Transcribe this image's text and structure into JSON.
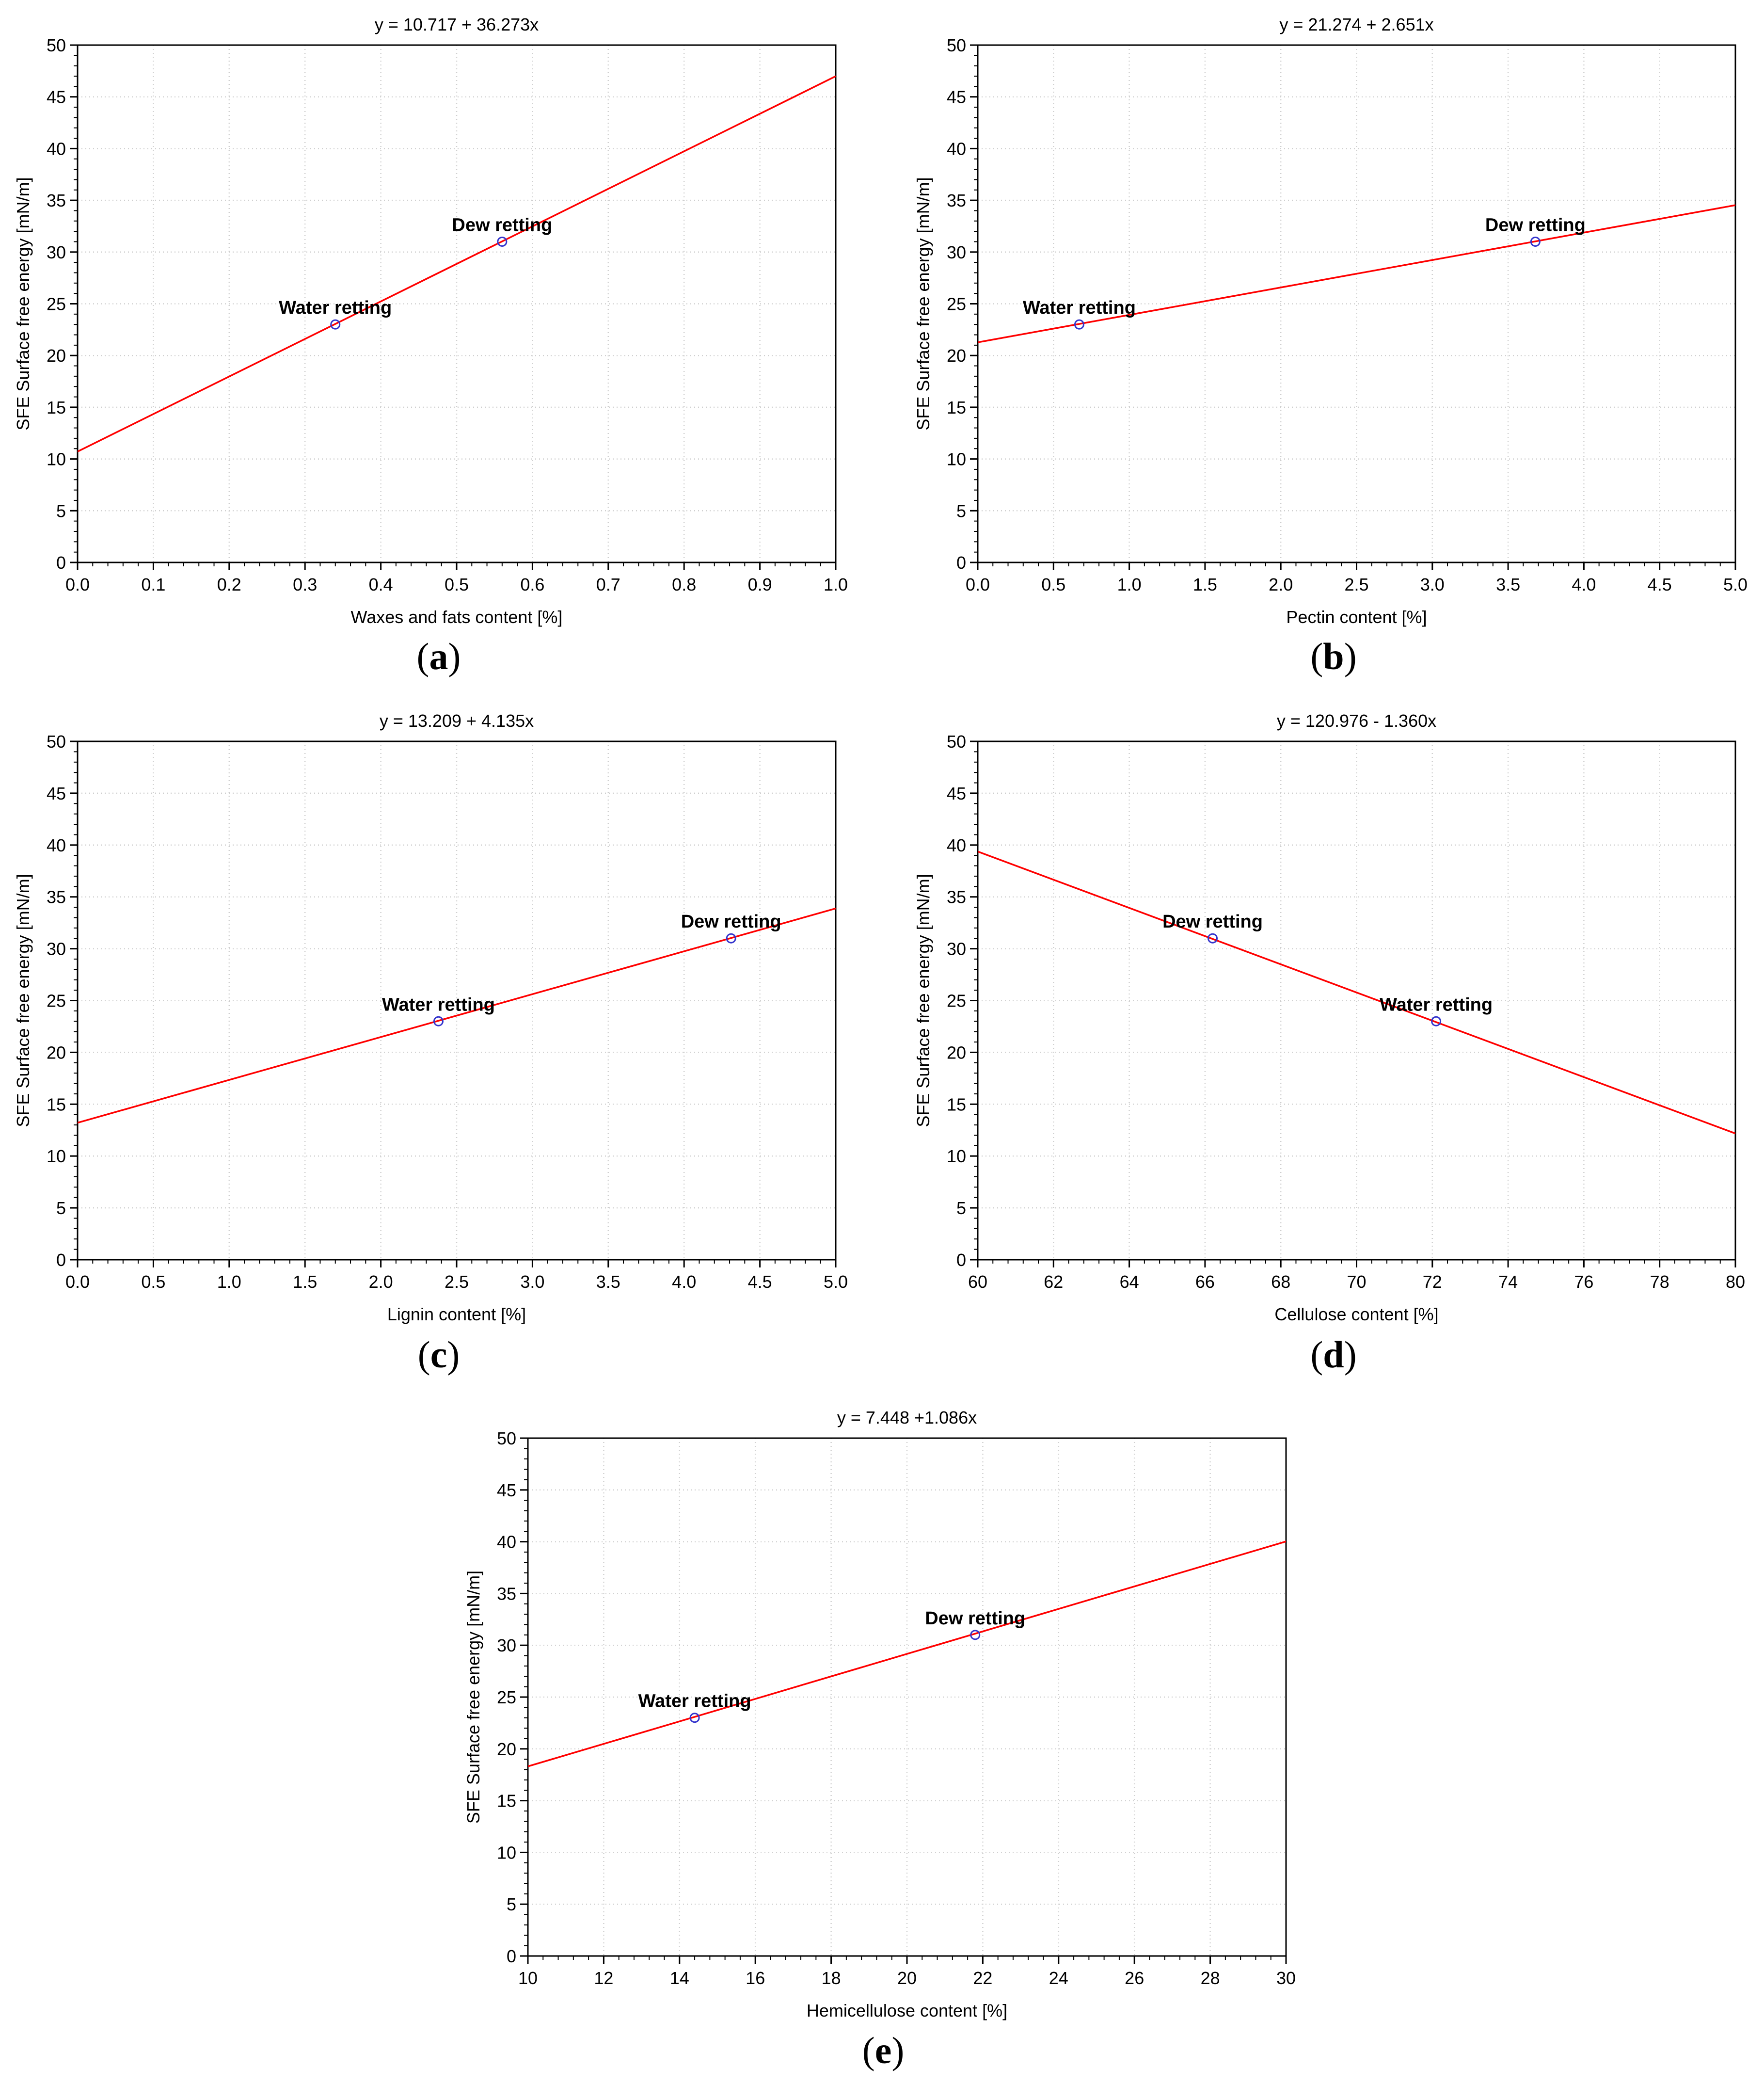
{
  "chart_data": [
    {
      "type": "scatter",
      "panel_label": "a",
      "title": "y = 10.717 + 36.273x",
      "xlabel": "Waxes and fats content [%]",
      "ylabel": "SFE Surface free energy [mN/m]",
      "xlim": [
        0,
        1.0
      ],
      "ylim": [
        0,
        50
      ],
      "x_ticks": [
        "0.0",
        "0.1",
        "0.2",
        "0.3",
        "0.4",
        "0.5",
        "0.6",
        "0.7",
        "0.8",
        "0.9",
        "1.0"
      ],
      "y_ticks": [
        "0",
        "5",
        "10",
        "15",
        "20",
        "25",
        "30",
        "35",
        "40",
        "45",
        "50"
      ],
      "grid": true,
      "line_color": "#ff0000",
      "point_color": "#3333cc",
      "fit": {
        "intercept": 10.717,
        "slope": 36.273
      },
      "points": [
        {
          "label": "Water retting",
          "x": 0.34,
          "y": 23.0
        },
        {
          "label": "Dew retting",
          "x": 0.56,
          "y": 31.0
        }
      ]
    },
    {
      "type": "scatter",
      "panel_label": "b",
      "title": "y = 21.274 + 2.651x",
      "xlabel": "Pectin content [%]",
      "ylabel": "SFE Surface free energy [mN/m]",
      "xlim": [
        0,
        5.0
      ],
      "ylim": [
        0,
        50
      ],
      "x_ticks": [
        "0.0",
        "0.5",
        "1.0",
        "1.5",
        "2.0",
        "2.5",
        "3.0",
        "3.5",
        "4.0",
        "4.5",
        "5.0"
      ],
      "y_ticks": [
        "0",
        "5",
        "10",
        "15",
        "20",
        "25",
        "30",
        "35",
        "40",
        "45",
        "50"
      ],
      "grid": true,
      "line_color": "#ff0000",
      "point_color": "#3333cc",
      "fit": {
        "intercept": 21.274,
        "slope": 2.651
      },
      "points": [
        {
          "label": "Water retting",
          "x": 0.67,
          "y": 23.0
        },
        {
          "label": "Dew retting",
          "x": 3.68,
          "y": 31.0
        }
      ]
    },
    {
      "type": "scatter",
      "panel_label": "c",
      "title": "y = 13.209 + 4.135x",
      "xlabel": "Lignin content [%]",
      "ylabel": "SFE Surface free energy [mN/m]",
      "xlim": [
        0,
        5.0
      ],
      "ylim": [
        0,
        50
      ],
      "x_ticks": [
        "0.0",
        "0.5",
        "1.0",
        "1.5",
        "2.0",
        "2.5",
        "3.0",
        "3.5",
        "4.0",
        "4.5",
        "5.0"
      ],
      "y_ticks": [
        "0",
        "5",
        "10",
        "15",
        "20",
        "25",
        "30",
        "35",
        "40",
        "45",
        "50"
      ],
      "grid": true,
      "line_color": "#ff0000",
      "point_color": "#3333cc",
      "fit": {
        "intercept": 13.209,
        "slope": 4.135
      },
      "points": [
        {
          "label": "Water retting",
          "x": 2.38,
          "y": 23.0
        },
        {
          "label": "Dew retting",
          "x": 4.31,
          "y": 31.0
        }
      ]
    },
    {
      "type": "scatter",
      "panel_label": "d",
      "title": "y = 120.976 - 1.360x",
      "xlabel": "Cellulose content [%]",
      "ylabel": "SFE Surface free energy [mN/m]",
      "xlim": [
        60,
        80
      ],
      "ylim": [
        0,
        50
      ],
      "x_ticks": [
        "60",
        "62",
        "64",
        "66",
        "68",
        "70",
        "72",
        "74",
        "76",
        "78",
        "80"
      ],
      "y_ticks": [
        "0",
        "5",
        "10",
        "15",
        "20",
        "25",
        "30",
        "35",
        "40",
        "45",
        "50"
      ],
      "grid": true,
      "line_color": "#ff0000",
      "point_color": "#3333cc",
      "fit": {
        "intercept": 120.976,
        "slope": -1.36
      },
      "points": [
        {
          "label": "Dew retting",
          "x": 66.2,
          "y": 31.0
        },
        {
          "label": "Water retting",
          "x": 72.1,
          "y": 23.0
        }
      ]
    },
    {
      "type": "scatter",
      "panel_label": "e",
      "title": "y = 7.448 +1.086x",
      "xlabel": "Hemicellulose content [%]",
      "ylabel": "SFE Surface free energy [mN/m]",
      "xlim": [
        10,
        30
      ],
      "ylim": [
        0,
        50
      ],
      "x_ticks": [
        "10",
        "12",
        "14",
        "16",
        "18",
        "20",
        "22",
        "24",
        "26",
        "28",
        "30"
      ],
      "y_ticks": [
        "0",
        "5",
        "10",
        "15",
        "20",
        "25",
        "30",
        "35",
        "40",
        "45",
        "50"
      ],
      "grid": true,
      "line_color": "#ff0000",
      "point_color": "#3333cc",
      "fit": {
        "intercept": 7.448,
        "slope": 1.086
      },
      "points": [
        {
          "label": "Water retting",
          "x": 14.4,
          "y": 23.0
        },
        {
          "label": "Dew retting",
          "x": 21.8,
          "y": 31.0
        }
      ]
    }
  ]
}
